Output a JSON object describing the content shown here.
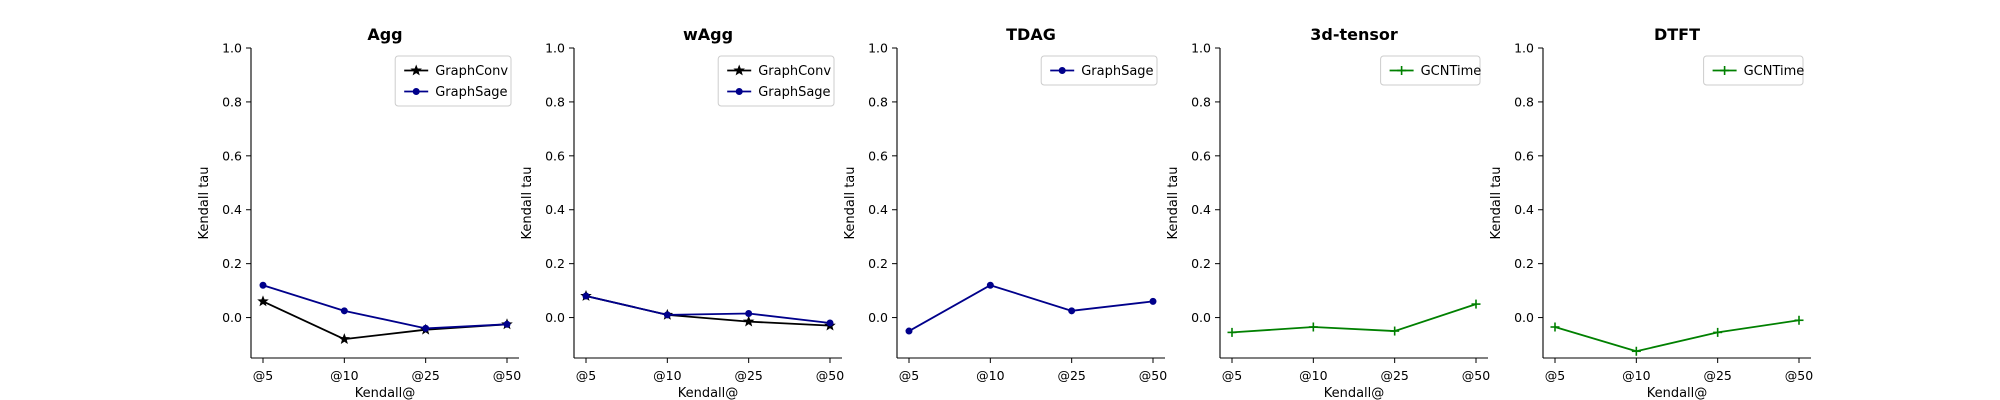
{
  "chart_data": [
    {
      "type": "line",
      "title": "Agg",
      "xlabel": "Kendall@",
      "ylabel": "Kendall tau",
      "categories": [
        "@5",
        "@10",
        "@25",
        "@50"
      ],
      "ylim": [
        -0.15,
        1.0
      ],
      "yticks": [
        0.0,
        0.2,
        0.4,
        0.6,
        0.8,
        1.0
      ],
      "ytick_labels": [
        "0.0",
        "0.2",
        "0.4",
        "0.6",
        "0.8",
        "1.0"
      ],
      "legend_position": "top-right",
      "grid": false,
      "series": [
        {
          "name": "GraphConv",
          "color": "#000000",
          "marker": "star",
          "values": [
            0.06,
            -0.08,
            -0.045,
            -0.025
          ]
        },
        {
          "name": "GraphSage",
          "color": "#00008b",
          "marker": "dot",
          "values": [
            0.12,
            0.025,
            -0.04,
            -0.025
          ]
        }
      ]
    },
    {
      "type": "line",
      "title": "wAgg",
      "xlabel": "Kendall@",
      "ylabel": "Kendall tau",
      "categories": [
        "@5",
        "@10",
        "@25",
        "@50"
      ],
      "ylim": [
        -0.15,
        1.0
      ],
      "yticks": [
        0.0,
        0.2,
        0.4,
        0.6,
        0.8,
        1.0
      ],
      "ytick_labels": [
        "0.0",
        "0.2",
        "0.4",
        "0.6",
        "0.8",
        "1.0"
      ],
      "legend_position": "top-right",
      "grid": false,
      "series": [
        {
          "name": "GraphConv",
          "color": "#000000",
          "marker": "star",
          "values": [
            0.08,
            0.01,
            -0.015,
            -0.03
          ]
        },
        {
          "name": "GraphSage",
          "color": "#00008b",
          "marker": "dot",
          "values": [
            0.08,
            0.01,
            0.015,
            -0.02
          ]
        }
      ]
    },
    {
      "type": "line",
      "title": "TDAG",
      "xlabel": "",
      "ylabel": "Kendall tau",
      "categories": [
        "@5",
        "@10",
        "@25",
        "@50"
      ],
      "ylim": [
        -0.15,
        1.0
      ],
      "yticks": [
        0.0,
        0.2,
        0.4,
        0.6,
        0.8,
        1.0
      ],
      "ytick_labels": [
        "0.0",
        "0.2",
        "0.4",
        "0.6",
        "0.8",
        "1.0"
      ],
      "legend_position": "top-right",
      "grid": false,
      "series": [
        {
          "name": "GraphSage",
          "color": "#00008b",
          "marker": "dot",
          "values": [
            -0.05,
            0.12,
            0.025,
            0.06
          ]
        }
      ]
    },
    {
      "type": "line",
      "title": "3d-tensor",
      "xlabel": "Kendall@",
      "ylabel": "Kendall tau",
      "categories": [
        "@5",
        "@10",
        "@25",
        "@50"
      ],
      "ylim": [
        -0.15,
        1.0
      ],
      "yticks": [
        0.0,
        0.2,
        0.4,
        0.6,
        0.8,
        1.0
      ],
      "ytick_labels": [
        "0.0",
        "0.2",
        "0.4",
        "0.6",
        "0.8",
        "1.0"
      ],
      "legend_position": "top-right",
      "grid": false,
      "series": [
        {
          "name": "GCNTime",
          "color": "#008000",
          "marker": "plus",
          "values": [
            -0.055,
            -0.035,
            -0.05,
            0.05
          ]
        }
      ]
    },
    {
      "type": "line",
      "title": "DTFT",
      "xlabel": "Kendall@",
      "ylabel": "Kendall tau",
      "categories": [
        "@5",
        "@10",
        "@25",
        "@50"
      ],
      "ylim": [
        -0.15,
        1.0
      ],
      "yticks": [
        0.0,
        0.2,
        0.4,
        0.6,
        0.8,
        1.0
      ],
      "ytick_labels": [
        "0.0",
        "0.2",
        "0.4",
        "0.6",
        "0.8",
        "1.0"
      ],
      "legend_position": "top-right",
      "grid": false,
      "series": [
        {
          "name": "GCNTime",
          "color": "#008000",
          "marker": "plus",
          "values": [
            -0.035,
            -0.125,
            -0.055,
            -0.01
          ]
        }
      ]
    }
  ]
}
